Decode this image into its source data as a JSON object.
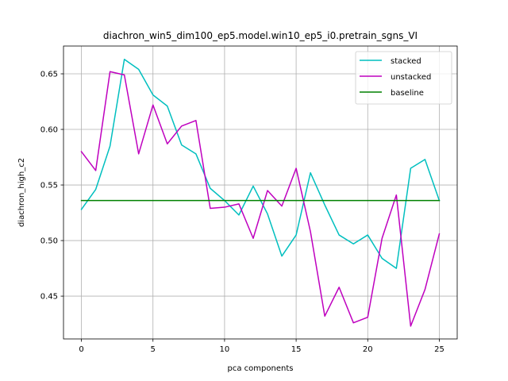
{
  "chart_data": {
    "type": "line",
    "title": "diachron_win5_dim100_ep5.model.win10_ep5_i0.pretrain_sgns_VI",
    "xlabel": "pca components",
    "ylabel": "diachron_high_c2",
    "xlim": [
      -1.25,
      26.25
    ],
    "ylim": [
      0.4115,
      0.675
    ],
    "xticks": [
      0,
      5,
      10,
      15,
      20,
      25
    ],
    "yticks": [
      0.45,
      0.5,
      0.55,
      0.6,
      0.65
    ],
    "ytick_labels": [
      "0.45",
      "0.50",
      "0.55",
      "0.60",
      "0.65"
    ],
    "grid": true,
    "legend_position": "upper right",
    "x": [
      0,
      1,
      2,
      3,
      4,
      5,
      6,
      7,
      8,
      9,
      10,
      11,
      12,
      13,
      14,
      15,
      16,
      17,
      18,
      19,
      20,
      21,
      22,
      23,
      24,
      25
    ],
    "series": [
      {
        "name": "stacked",
        "color": "#00bfbf",
        "values": [
          0.528,
          0.546,
          0.585,
          0.663,
          0.654,
          0.631,
          0.621,
          0.586,
          0.578,
          0.547,
          0.536,
          0.523,
          0.549,
          0.524,
          0.486,
          0.505,
          0.561,
          0.532,
          0.505,
          0.497,
          0.505,
          0.484,
          0.475,
          0.565,
          0.573,
          0.536
        ]
      },
      {
        "name": "unstacked",
        "color": "#bf00bf",
        "values": [
          0.58,
          0.563,
          0.652,
          0.649,
          0.578,
          0.622,
          0.587,
          0.603,
          0.608,
          0.529,
          0.53,
          0.533,
          0.502,
          0.545,
          0.531,
          0.565,
          0.508,
          0.432,
          0.458,
          0.426,
          0.431,
          0.502,
          0.541,
          0.423,
          0.456,
          0.506
        ]
      },
      {
        "name": "baseline",
        "color": "#008000",
        "values": [
          0.536,
          0.536,
          0.536,
          0.536,
          0.536,
          0.536,
          0.536,
          0.536,
          0.536,
          0.536,
          0.536,
          0.536,
          0.536,
          0.536,
          0.536,
          0.536,
          0.536,
          0.536,
          0.536,
          0.536,
          0.536,
          0.536,
          0.536,
          0.536,
          0.536,
          0.536
        ]
      }
    ]
  }
}
